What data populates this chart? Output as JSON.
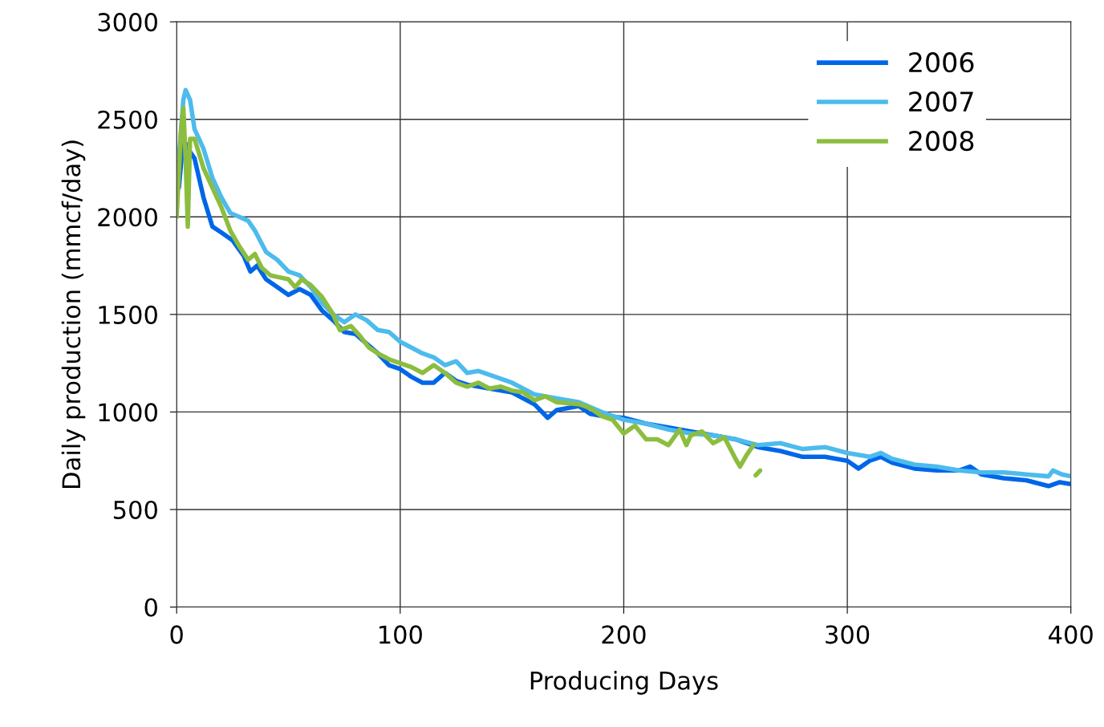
{
  "chart_data": {
    "type": "line",
    "xlabel": "Producing Days",
    "ylabel": "Daily production (mmcf/day)",
    "xlim": [
      0,
      400
    ],
    "xticks": [
      0,
      100,
      200,
      300,
      400
    ],
    "ylim": [
      0,
      3000
    ],
    "yticks": [
      0,
      500,
      1000,
      1500,
      2000,
      2500,
      3000
    ],
    "grid": true,
    "legend": "top right",
    "marker": "none",
    "line_style": "solid",
    "series": [
      {
        "name": "2006",
        "color": "#0066e8",
        "x": [
          1,
          3,
          5,
          8,
          12,
          16,
          20,
          25,
          30,
          33,
          36,
          40,
          45,
          50,
          55,
          60,
          65,
          70,
          75,
          80,
          85,
          90,
          95,
          100,
          105,
          110,
          115,
          120,
          125,
          130,
          140,
          150,
          160,
          166,
          170,
          180,
          185,
          190,
          200,
          210,
          220,
          230,
          240,
          250,
          260,
          270,
          280,
          290,
          300,
          305,
          310,
          315,
          320,
          330,
          340,
          350,
          355,
          360,
          370,
          380,
          390,
          395,
          400
        ],
        "values": [
          2150,
          2400,
          2350,
          2300,
          2100,
          1950,
          1920,
          1880,
          1800,
          1720,
          1750,
          1680,
          1640,
          1600,
          1630,
          1600,
          1520,
          1470,
          1410,
          1400,
          1350,
          1300,
          1240,
          1220,
          1180,
          1150,
          1150,
          1200,
          1160,
          1140,
          1120,
          1100,
          1040,
          970,
          1010,
          1030,
          990,
          980,
          970,
          940,
          920,
          900,
          880,
          860,
          820,
          800,
          770,
          770,
          750,
          710,
          750,
          770,
          740,
          710,
          700,
          700,
          720,
          680,
          660,
          650,
          620,
          640,
          630
        ]
      },
      {
        "name": "2007",
        "color": "#4dbbec",
        "x": [
          1,
          3,
          4,
          6,
          8,
          12,
          16,
          20,
          24,
          28,
          32,
          35,
          40,
          45,
          50,
          55,
          60,
          65,
          70,
          75,
          80,
          85,
          90,
          95,
          100,
          110,
          115,
          120,
          125,
          130,
          135,
          140,
          150,
          160,
          170,
          180,
          190,
          200,
          210,
          220,
          230,
          240,
          250,
          260,
          270,
          280,
          290,
          300,
          310,
          315,
          320,
          330,
          340,
          350,
          360,
          370,
          380,
          390,
          392,
          396,
          400
        ],
        "values": [
          2300,
          2600,
          2650,
          2600,
          2450,
          2350,
          2200,
          2100,
          2020,
          2000,
          1980,
          1930,
          1820,
          1780,
          1720,
          1700,
          1640,
          1560,
          1500,
          1460,
          1500,
          1470,
          1420,
          1410,
          1360,
          1300,
          1280,
          1240,
          1260,
          1200,
          1210,
          1190,
          1150,
          1090,
          1070,
          1050,
          1000,
          960,
          940,
          910,
          890,
          880,
          860,
          830,
          840,
          810,
          820,
          790,
          770,
          790,
          760,
          730,
          720,
          700,
          690,
          690,
          680,
          670,
          700,
          680,
          670
        ]
      },
      {
        "name": "2008",
        "color": "#8cbd3f",
        "x": [
          0,
          2,
          3,
          4,
          5,
          6,
          8,
          12,
          16,
          20,
          24,
          28,
          32,
          35,
          38,
          42,
          46,
          50,
          53,
          56,
          60,
          65,
          70,
          73,
          78,
          82,
          86,
          90,
          95,
          100,
          105,
          110,
          115,
          120,
          125,
          130,
          135,
          140,
          145,
          150,
          155,
          160,
          165,
          170,
          180,
          185,
          190,
          195,
          200,
          205,
          210,
          215,
          220,
          225,
          228,
          230,
          235,
          240,
          245,
          250,
          252,
          255,
          258,
          258.5,
          259,
          261
        ],
        "values": [
          2000,
          2450,
          2560,
          2300,
          1950,
          2400,
          2400,
          2250,
          2150,
          2050,
          1930,
          1850,
          1780,
          1810,
          1740,
          1700,
          1690,
          1680,
          1640,
          1680,
          1650,
          1590,
          1500,
          1420,
          1440,
          1390,
          1330,
          1300,
          1270,
          1250,
          1230,
          1200,
          1240,
          1200,
          1150,
          1130,
          1150,
          1120,
          1130,
          1110,
          1100,
          1060,
          1080,
          1050,
          1040,
          1020,
          980,
          960,
          890,
          930,
          860,
          860,
          830,
          910,
          830,
          880,
          900,
          840,
          870,
          760,
          720,
          780,
          830,
          null,
          675,
          700
        ]
      }
    ]
  }
}
